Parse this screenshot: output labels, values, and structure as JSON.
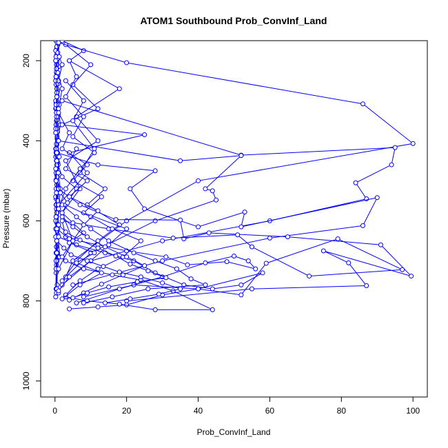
{
  "chart_data": {
    "type": "line",
    "title": "ATOM1 Southbound Prob_ConvInf_Land",
    "xlabel": "Prob_ConvInf_Land",
    "ylabel": "Pressure (mbar)",
    "xlim": [
      -4,
      104
    ],
    "ylim": [
      1040,
      150
    ],
    "y_reversed": true,
    "x_ticks": [
      0,
      20,
      40,
      60,
      80,
      100
    ],
    "y_ticks": [
      200,
      400,
      600,
      800,
      1000
    ],
    "x_tick_labels": [
      "0",
      "20",
      "40",
      "60",
      "80",
      "100"
    ],
    "y_tick_labels": [
      "200",
      "400",
      "600",
      "800",
      "1000"
    ],
    "grid": false,
    "series_color": "#0000ff",
    "profiles": [
      {
        "x": [
          0.3,
          0.5,
          0.2,
          0.4,
          0.3,
          0.6,
          0.2,
          0.4,
          0.3,
          0.5,
          0.2,
          0.4,
          0.3,
          0.5,
          0.3,
          0.4,
          0.2,
          0.5,
          0.3,
          0.4
        ],
        "y": [
          150,
          170,
          200,
          230,
          260,
          290,
          320,
          350,
          380,
          410,
          440,
          470,
          500,
          530,
          560,
          590,
          620,
          650,
          680,
          710
        ]
      },
      {
        "x": [
          0.8,
          0.5,
          1.0,
          0.4,
          0.7,
          0.3,
          0.9,
          0.5,
          0.6,
          0.4,
          0.8,
          0.5,
          0.7,
          0.3,
          0.6,
          0.5,
          0.8,
          0.4,
          0.6,
          0.5
        ],
        "y": [
          160,
          185,
          215,
          245,
          275,
          305,
          335,
          365,
          395,
          425,
          455,
          485,
          515,
          545,
          575,
          605,
          635,
          665,
          695,
          725
        ]
      },
      {
        "x": [
          0.2,
          0.4,
          0.3,
          0.5,
          0.2,
          0.4,
          0.3,
          0.6,
          0.2,
          0.4,
          0.3,
          0.5,
          0.2,
          0.4,
          0.3,
          0.5,
          0.6,
          0.3
        ],
        "y": [
          175,
          210,
          240,
          270,
          300,
          330,
          360,
          390,
          420,
          450,
          480,
          510,
          540,
          570,
          600,
          640,
          700,
          770
        ]
      },
      {
        "x": [
          0.5,
          0.7,
          0.4,
          0.8,
          0.6,
          0.3,
          0.5,
          0.7,
          0.4,
          0.6,
          0.5,
          0.3,
          0.7,
          0.5,
          0.4,
          0.6,
          0.3,
          0.2
        ],
        "y": [
          165,
          195,
          228,
          258,
          288,
          318,
          348,
          378,
          408,
          438,
          468,
          498,
          528,
          558,
          588,
          625,
          730,
          790
        ]
      },
      {
        "x": [
          1.5,
          0.8,
          2.0,
          1.0,
          0.6,
          1.2,
          0.8,
          0.5,
          1.0,
          0.7,
          0.9,
          0.6,
          1.1,
          0.8,
          0.5,
          1.0,
          0.7,
          0.6
        ],
        "y": [
          150,
          180,
          210,
          250,
          280,
          310,
          340,
          370,
          400,
          430,
          460,
          490,
          520,
          550,
          580,
          610,
          680,
          760
        ]
      },
      {
        "x": [
          0.3,
          0.4,
          0.2,
          0.5,
          0.3,
          0.4,
          0.2,
          0.3,
          0.5,
          0.3,
          0.4,
          0.2,
          0.3,
          0.4
        ],
        "y": [
          190,
          220,
          250,
          280,
          310,
          340,
          370,
          420,
          460,
          520,
          560,
          600,
          700,
          780
        ]
      },
      {
        "x": [
          0.6,
          1.2,
          0.8,
          2.0,
          1.0,
          1.5,
          0.7,
          1.2,
          0.9,
          1.5,
          1.0,
          0.8,
          1.3
        ],
        "y": [
          155,
          190,
          230,
          270,
          320,
          360,
          400,
          440,
          480,
          520,
          570,
          620,
          690
        ]
      },
      {
        "x": [
          0.2,
          0.3,
          0.5,
          0.4,
          0.2,
          0.3,
          0.2,
          0.4,
          0.3,
          0.2,
          0.3,
          0.5
        ],
        "y": [
          200,
          240,
          290,
          330,
          380,
          430,
          470,
          530,
          590,
          640,
          720,
          770
        ]
      },
      {
        "x": [
          2.0,
          8.0,
          4.0,
          18.0,
          6.0,
          12.0,
          3.0,
          7.0,
          2.0,
          5.0,
          1.0
        ],
        "y": [
          150,
          175,
          200,
          270,
          340,
          400,
          450,
          520,
          580,
          650,
          720
        ]
      },
      {
        "x": [
          3.0,
          10.0,
          5.0,
          12.0,
          2.0,
          25.0,
          4.0,
          9.0,
          1.0,
          3.0
        ],
        "y": [
          160,
          210,
          260,
          320,
          360,
          385,
          430,
          480,
          560,
          640
        ]
      },
      {
        "x": [
          1.0,
          20.0,
          86.0,
          100.0,
          40.0,
          20.0,
          5.0,
          1.0
        ],
        "y": [
          155,
          205,
          308,
          407,
          500,
          600,
          700,
          780
        ]
      },
      {
        "x": [
          2.0,
          52.0,
          95.0,
          94.0,
          84.0,
          87.0,
          60.0,
          30.0,
          10.0,
          2.0
        ],
        "y": [
          300,
          436,
          417,
          460,
          505,
          545,
          600,
          650,
          700,
          760
        ]
      },
      {
        "x": [
          1.0,
          35.0,
          52.0,
          42.0,
          44.0,
          45.0,
          28.0,
          10.0,
          3.0
        ],
        "y": [
          400,
          450,
          437,
          520,
          525,
          548,
          600,
          680,
          740
        ]
      },
      {
        "x": [
          0.5,
          12.0,
          28.0,
          21.0,
          25.0,
          40.0,
          53.0,
          52.0,
          90.0,
          86.0,
          60.0,
          30.0,
          5.0
        ],
        "y": [
          430,
          460,
          475,
          520,
          570,
          615,
          578,
          615,
          542,
          612,
          643,
          700,
          760
        ]
      },
      {
        "x": [
          1.0,
          7.0,
          17.0,
          35.0,
          36.0,
          43.0,
          65.0,
          91.0,
          99.5,
          75.0,
          82.0,
          87.0,
          55.0,
          20.0
        ],
        "y": [
          520,
          560,
          597,
          598,
          645,
          630,
          640,
          660,
          738,
          675,
          705,
          762,
          770,
          800
        ]
      },
      {
        "x": [
          2.0,
          15.0,
          33.0,
          51.0,
          55.0,
          71.0,
          97.0,
          79.0,
          59.0,
          52.0,
          40.0,
          22.0,
          8.0
        ],
        "y": [
          600,
          620,
          643,
          635,
          665,
          738,
          722,
          645,
          706,
          785,
          770,
          760,
          790
        ]
      },
      {
        "x": [
          0.5,
          4.0,
          12.0,
          20.0,
          31.0,
          37.0,
          48.0,
          56.0,
          54.0,
          50.0,
          42.0,
          30.0,
          18.0,
          6.0
        ],
        "y": [
          620,
          645,
          660,
          675,
          690,
          710,
          702,
          720,
          700,
          688,
          705,
          740,
          770,
          805
        ]
      },
      {
        "x": [
          1.0,
          6.0,
          14.0,
          22.0,
          28.0,
          36.0,
          44.0,
          52.0,
          58.0,
          40.0,
          30.0,
          20.0,
          12.0,
          4.0
        ],
        "y": [
          640,
          660,
          680,
          700,
          730,
          760,
          770,
          760,
          730,
          770,
          785,
          810,
          815,
          820
        ]
      },
      {
        "x": [
          0.5,
          3.0,
          8.0,
          16.0,
          24.0,
          33.0,
          44.0,
          28.0,
          18.0,
          9.0,
          3.0
        ],
        "y": [
          680,
          700,
          720,
          735,
          748,
          775,
          822,
          822,
          808,
          800,
          790
        ]
      },
      {
        "x": [
          2.0,
          6.0,
          10.0,
          15.0,
          22.0,
          28.0,
          34.0,
          38.0,
          42.0,
          26.0,
          16.0,
          8.0
        ],
        "y": [
          560,
          590,
          620,
          650,
          680,
          700,
          720,
          745,
          760,
          770,
          790,
          805
        ]
      },
      {
        "x": [
          3.0,
          8.0,
          5.0,
          11.0,
          7.0,
          14.0,
          9.0,
          18.0,
          12.0,
          6.0,
          2.0
        ],
        "y": [
          250,
          300,
          350,
          420,
          480,
          520,
          560,
          610,
          650,
          700,
          750
        ]
      },
      {
        "x": [
          1.0,
          4.0,
          2.0,
          9.0,
          5.0,
          13.0,
          8.0,
          20.0,
          15.0,
          10.0,
          4.0,
          1.0
        ],
        "y": [
          330,
          380,
          420,
          460,
          500,
          540,
          580,
          620,
          660,
          700,
          740,
          775
        ]
      },
      {
        "x": [
          0.5,
          2.0,
          6.0,
          3.0,
          10.0,
          16.0,
          24.0,
          19.0,
          12.0,
          7.0,
          3.0
        ],
        "y": [
          450,
          490,
          520,
          560,
          590,
          620,
          650,
          690,
          720,
          750,
          785
        ]
      },
      {
        "x": [
          0.3,
          1.5,
          3.5,
          2.0,
          5.0,
          8.0,
          4.0,
          11.0,
          6.0,
          13.0,
          7.0,
          2.0
        ],
        "y": [
          500,
          530,
          555,
          580,
          605,
          630,
          655,
          680,
          705,
          730,
          760,
          795
        ]
      },
      {
        "x": [
          2.0,
          5.0,
          9.0,
          14.0,
          20.0,
          25.0,
          19.0,
          13.0,
          8.0,
          4.0
        ],
        "y": [
          590,
          615,
          640,
          665,
          690,
          712,
          735,
          758,
          780,
          798
        ]
      },
      {
        "x": [
          1.0,
          3.0,
          7.0,
          12.0,
          17.0,
          21.0,
          26.0,
          31.0,
          23.0,
          15.0,
          9.0,
          5.0
        ],
        "y": [
          610,
          628,
          648,
          668,
          688,
          708,
          725,
          742,
          752,
          765,
          780,
          792
        ]
      },
      {
        "x": [
          0.5,
          2.5,
          4.5,
          9.0,
          13.5,
          18.0,
          24.0,
          30.0,
          35.0,
          29.0,
          21.0,
          14.0
        ],
        "y": [
          650,
          668,
          685,
          700,
          714,
          728,
          740,
          755,
          770,
          783,
          795,
          805
        ]
      },
      {
        "x": [
          4.0,
          6.0,
          3.0,
          8.0,
          5.0,
          11.0,
          7.0,
          3.0,
          1.0
        ],
        "y": [
          200,
          240,
          290,
          340,
          390,
          430,
          470,
          520,
          570
        ]
      },
      {
        "x": [
          6.0,
          3.0,
          9.0,
          4.0,
          12.0,
          8.0,
          5.0,
          2.0
        ],
        "y": [
          420,
          470,
          500,
          540,
          575,
          610,
          650,
          690
        ]
      }
    ]
  }
}
